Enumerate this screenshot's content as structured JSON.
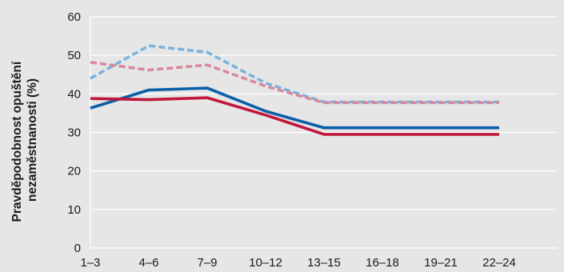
{
  "chart_data": {
    "type": "line",
    "title": "",
    "xlabel": "",
    "ylabel_lines": [
      "Pravděpodobnost opuštění",
      "nezaměstnanosti (%)"
    ],
    "categories": [
      "1–3",
      "4–6",
      "7–9",
      "10–12",
      "13–15",
      "16–18",
      "19–21",
      "22–24"
    ],
    "ylim": [
      0,
      60
    ],
    "yticks": [
      0,
      10,
      20,
      30,
      40,
      50,
      60
    ],
    "grid": "horizontal",
    "legend": "none",
    "series": [
      {
        "color": "#0a5fa8",
        "dash": "solid",
        "values": [
          36.3,
          41.0,
          41.5,
          35.5,
          31.2,
          31.2,
          31.2,
          31.2
        ]
      },
      {
        "color": "#c0173c",
        "dash": "solid",
        "values": [
          38.8,
          38.5,
          39.0,
          34.5,
          29.5,
          29.5,
          29.5,
          29.5
        ]
      },
      {
        "color": "#7ab2dc",
        "dash": "dashed",
        "values": [
          44.0,
          52.5,
          50.8,
          42.8,
          37.9,
          37.9,
          37.9,
          37.9
        ]
      },
      {
        "color": "#d8889a",
        "dash": "dashed",
        "values": [
          48.2,
          46.2,
          47.5,
          42.0,
          37.7,
          37.7,
          37.7,
          37.7
        ]
      }
    ]
  }
}
